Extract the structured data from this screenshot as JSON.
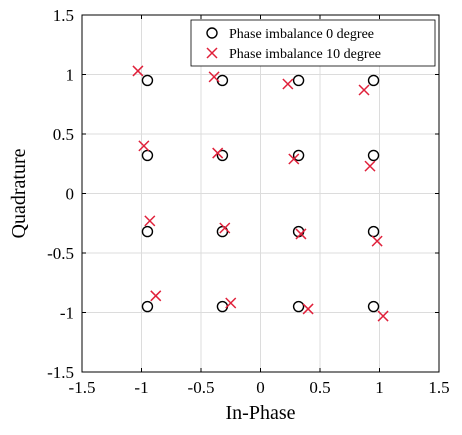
{
  "chart_data": {
    "type": "scatter",
    "title": "",
    "xlabel": "In-Phase",
    "ylabel": "Quadrature",
    "xlim": [
      -1.5,
      1.5
    ],
    "ylim": [
      -1.5,
      1.5
    ],
    "xticks": [
      -1.5,
      -1,
      -0.5,
      0,
      0.5,
      1,
      1.5
    ],
    "yticks": [
      -1.5,
      -1,
      -0.5,
      0,
      0.5,
      1,
      1.5
    ],
    "xtick_labels": [
      "-1.5",
      "-1",
      "-0.5",
      "0",
      "0.5",
      "1",
      "1.5"
    ],
    "ytick_labels": [
      "-1.5",
      "-1",
      "-0.5",
      "0",
      "0.5",
      "1",
      "1.5"
    ],
    "grid": true,
    "legend_position": "top-right",
    "series": [
      {
        "name": "Phase imbalance 0 degree",
        "marker": "circle",
        "color": "#000000",
        "points": [
          [
            -0.95,
            0.95
          ],
          [
            -0.32,
            0.95
          ],
          [
            0.32,
            0.95
          ],
          [
            0.95,
            0.95
          ],
          [
            -0.95,
            0.32
          ],
          [
            -0.32,
            0.32
          ],
          [
            0.32,
            0.32
          ],
          [
            0.95,
            0.32
          ],
          [
            -0.95,
            -0.32
          ],
          [
            -0.32,
            -0.32
          ],
          [
            0.32,
            -0.32
          ],
          [
            0.95,
            -0.32
          ],
          [
            -0.95,
            -0.95
          ],
          [
            -0.32,
            -0.95
          ],
          [
            0.32,
            -0.95
          ],
          [
            0.95,
            -0.95
          ]
        ]
      },
      {
        "name": "Phase imbalance 10 degree",
        "marker": "x",
        "color": "#e0203a",
        "points": [
          [
            -1.03,
            1.03
          ],
          [
            -0.39,
            0.98
          ],
          [
            0.23,
            0.92
          ],
          [
            0.87,
            0.87
          ],
          [
            -0.98,
            0.4
          ],
          [
            -0.36,
            0.34
          ],
          [
            0.28,
            0.29
          ],
          [
            0.92,
            0.23
          ],
          [
            -0.93,
            -0.23
          ],
          [
            -0.3,
            -0.29
          ],
          [
            0.34,
            -0.34
          ],
          [
            0.98,
            -0.4
          ],
          [
            -0.88,
            -0.86
          ],
          [
            -0.25,
            -0.92
          ],
          [
            0.4,
            -0.97
          ],
          [
            1.03,
            -1.03
          ]
        ]
      }
    ]
  }
}
